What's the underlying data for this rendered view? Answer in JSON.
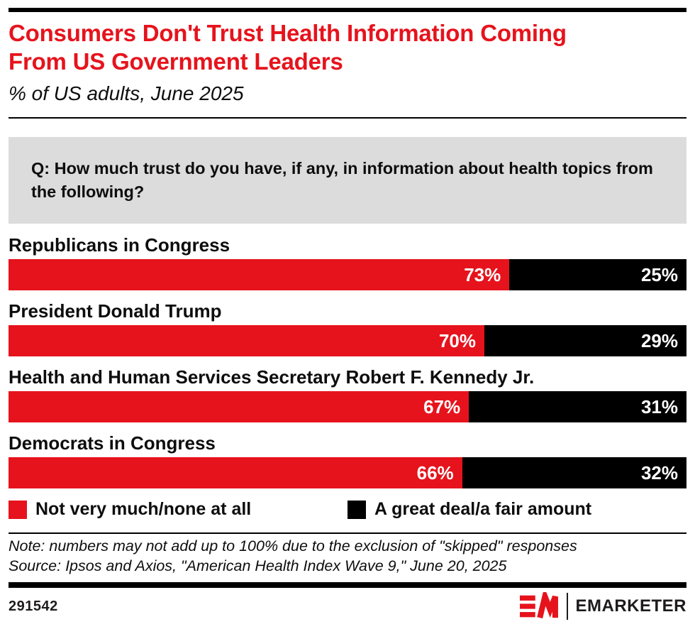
{
  "header": {
    "title_line1": "Consumers Don't Trust Health Information Coming",
    "title_line2": "From US Government Leaders",
    "subtitle": "% of US adults, June 2025",
    "title_color": "#e6131c"
  },
  "question_box": {
    "text": "Q: How much trust do you have, if any, in information about health topics from the following?",
    "background": "#dcdcdc"
  },
  "chart_data": {
    "type": "bar",
    "orientation": "horizontal",
    "stacked": true,
    "normalized_to_full_width": true,
    "title": "Consumers Don't Trust Health Information Coming From US Government Leaders",
    "subtitle": "% of US adults, June 2025",
    "categories": [
      "Republicans in Congress",
      "President Donald Trump",
      "Health and Human Services Secretary Robert F. Kennedy Jr.",
      "Democrats in Congress"
    ],
    "series": [
      {
        "name": "Not very much/none at all",
        "color": "#e6131c",
        "values": [
          73,
          70,
          67,
          66
        ]
      },
      {
        "name": "A great deal/a fair amount",
        "color": "#000000",
        "values": [
          25,
          29,
          31,
          32
        ]
      }
    ],
    "value_suffix": "%",
    "value_label_color": "#ffffff",
    "legend_position": "bottom",
    "grid": false
  },
  "footnotes": {
    "note": "Note: numbers may not add up to 100% due to the exclusion of \"skipped\" responses",
    "source": "Source: Ipsos and Axios, \"American Health Index Wave 9,\" June 20, 2025"
  },
  "footer": {
    "chart_id": "291542",
    "brand": "EMARKETER",
    "brand_color": "#e6131c"
  }
}
